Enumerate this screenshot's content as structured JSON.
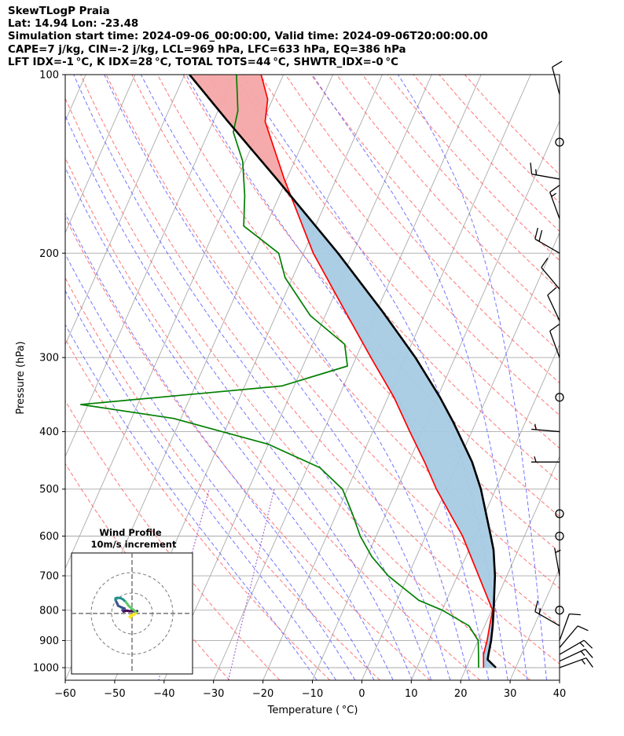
{
  "header": {
    "line1": "SkewTLogP Praia",
    "line2": "Lat: 14.94   Lon: -23.48",
    "line3": "Simulation start time: 2024-09-06_00:00:00, Valid time: 2024-09-06T20:00:00.00",
    "line4": "CAPE=7 j/kg, CIN=-2 j/kg, LCL=969 hPa, LFC=633 hPa, EQ=386 hPa",
    "line5": "LFT IDX=-1 °C, K IDX=28 °C, TOTAL TOTS=44 °C, SHWTR_IDX=-0 °C"
  },
  "colors": {
    "temperature": "#ff0000",
    "dewpoint": "#008000",
    "parcel": "#000000",
    "cape_fill": "#a6cbe3",
    "cin_fill": "#f4a6a6",
    "dry_adiabat": "#ff6666",
    "moist_adiabat": "#6666ff",
    "mixing_ratio": "#9a4fc7",
    "isotherm": "#aaaaaa"
  },
  "chart_data": {
    "type": "line",
    "subtype": "skew-T log-P",
    "xlabel": "Temperature ( °C)",
    "ylabel": "Pressure (hPa)",
    "xlim": [
      -60,
      40
    ],
    "ylim": [
      1050,
      100
    ],
    "y_scale": "log",
    "grid": true,
    "x_ticks": [
      -60,
      -50,
      -40,
      -30,
      -20,
      -10,
      0,
      10,
      20,
      30,
      40
    ],
    "x_tick_labels": [
      "−60",
      "−50",
      "−40",
      "−30",
      "−20",
      "−10",
      "0",
      "10",
      "20",
      "30",
      "40"
    ],
    "y_ticks": [
      100,
      200,
      300,
      400,
      500,
      600,
      700,
      800,
      900,
      1000
    ],
    "y_tick_labels": [
      "100",
      "200",
      "300",
      "400",
      "500",
      "600",
      "700",
      "800",
      "900",
      "1000"
    ],
    "series": [
      {
        "key": "temperature",
        "points": [
          [
            1000,
            23.5
          ],
          [
            950,
            22.3
          ],
          [
            900,
            21.8
          ],
          [
            850,
            21.0
          ],
          [
            800,
            20.2
          ],
          [
            770,
            18.5
          ],
          [
            700,
            14.3
          ],
          [
            600,
            7.5
          ],
          [
            500,
            -2.0
          ],
          [
            450,
            -6.8
          ],
          [
            400,
            -12.5
          ],
          [
            350,
            -18.8
          ],
          [
            300,
            -27.0
          ],
          [
            250,
            -36.5
          ],
          [
            200,
            -48.0
          ],
          [
            150,
            -60.5
          ],
          [
            120,
            -69.5
          ],
          [
            110,
            -71.0
          ],
          [
            100,
            -74.5
          ]
        ]
      },
      {
        "key": "dewpoint",
        "points": [
          [
            1000,
            22.5
          ],
          [
            950,
            21.3
          ],
          [
            900,
            20.0
          ],
          [
            850,
            16.8
          ],
          [
            800,
            10.0
          ],
          [
            770,
            4.4
          ],
          [
            700,
            -4.0
          ],
          [
            650,
            -9.0
          ],
          [
            600,
            -13.2
          ],
          [
            550,
            -16.8
          ],
          [
            500,
            -21.0
          ],
          [
            460,
            -27.5
          ],
          [
            420,
            -40.0
          ],
          [
            380,
            -61.5
          ],
          [
            360,
            -81.5
          ],
          [
            335,
            -42.5
          ],
          [
            310,
            -31.0
          ],
          [
            285,
            -33.5
          ],
          [
            255,
            -43.0
          ],
          [
            220,
            -51.5
          ],
          [
            200,
            -55.0
          ],
          [
            180,
            -64.5
          ],
          [
            160,
            -67.0
          ],
          [
            140,
            -70.5
          ],
          [
            125,
            -75.0
          ],
          [
            115,
            -76.0
          ],
          [
            100,
            -79.5
          ]
        ]
      },
      {
        "key": "parcel",
        "points": [
          [
            1000,
            26.0
          ],
          [
            969,
            23.6
          ],
          [
            950,
            23.3
          ],
          [
            900,
            22.6
          ],
          [
            850,
            21.6
          ],
          [
            800,
            20.4
          ],
          [
            700,
            17.6
          ],
          [
            633,
            15.0
          ],
          [
            600,
            13.2
          ],
          [
            500,
            7.0
          ],
          [
            450,
            2.8
          ],
          [
            386,
            -4.5
          ],
          [
            350,
            -9.5
          ],
          [
            300,
            -18.0
          ],
          [
            250,
            -29.0
          ],
          [
            200,
            -43.0
          ],
          [
            150,
            -62.0
          ],
          [
            120,
            -77.0
          ],
          [
            100,
            -89.0
          ]
        ]
      }
    ],
    "wind_barbs": [
      {
        "pressure": 1000,
        "speed_kt": 15,
        "direction_deg": 70
      },
      {
        "pressure": 975,
        "speed_kt": 15,
        "direction_deg": 65
      },
      {
        "pressure": 950,
        "speed_kt": 15,
        "direction_deg": 60
      },
      {
        "pressure": 925,
        "speed_kt": 12,
        "direction_deg": 40
      },
      {
        "pressure": 900,
        "speed_kt": 10,
        "direction_deg": 20
      },
      {
        "pressure": 850,
        "speed_kt": 15,
        "direction_deg": 300
      },
      {
        "pressure": 800,
        "speed_kt": 0,
        "direction_deg": 0
      },
      {
        "pressure": 700,
        "speed_kt": 5,
        "direction_deg": 350
      },
      {
        "pressure": 600,
        "speed_kt": 0,
        "direction_deg": 0
      },
      {
        "pressure": 550,
        "speed_kt": 0,
        "direction_deg": 0
      },
      {
        "pressure": 450,
        "speed_kt": 5,
        "direction_deg": 270
      },
      {
        "pressure": 400,
        "speed_kt": 5,
        "direction_deg": 275
      },
      {
        "pressure": 350,
        "speed_kt": 0,
        "direction_deg": 0
      },
      {
        "pressure": 300,
        "speed_kt": 10,
        "direction_deg": 340
      },
      {
        "pressure": 260,
        "speed_kt": 10,
        "direction_deg": 335
      },
      {
        "pressure": 230,
        "speed_kt": 10,
        "direction_deg": 320
      },
      {
        "pressure": 200,
        "speed_kt": 20,
        "direction_deg": 300
      },
      {
        "pressure": 175,
        "speed_kt": 15,
        "direction_deg": 340
      },
      {
        "pressure": 150,
        "speed_kt": 15,
        "direction_deg": 280
      },
      {
        "pressure": 130,
        "speed_kt": 0,
        "direction_deg": 0
      },
      {
        "pressure": 108,
        "speed_kt": 10,
        "direction_deg": 345
      }
    ],
    "inset": {
      "title_line1": "Wind Profile",
      "title_line2": "10m/s increment",
      "hodograph_ms": [
        [
          2.5,
          1.2
        ],
        [
          1.6,
          0.8
        ],
        [
          0.3,
          1.3
        ],
        [
          -1.2,
          1.1
        ],
        [
          -2.6,
          1.4
        ],
        [
          -4.1,
          1.0
        ],
        [
          -4.7,
          1.6
        ],
        [
          -3.6,
          2.4
        ],
        [
          -5.2,
          3.0
        ],
        [
          -6.8,
          3.8
        ],
        [
          -7.4,
          5.2
        ],
        [
          -8.1,
          6.5
        ],
        [
          -8.1,
          7.4
        ],
        [
          -7.2,
          7.7
        ],
        [
          -5.6,
          7.5
        ],
        [
          -4.4,
          6.9
        ],
        [
          -3.0,
          5.6
        ],
        [
          -1.6,
          3.7
        ],
        [
          -0.2,
          2.4
        ],
        [
          1.2,
          1.4
        ],
        [
          2.0,
          0.6
        ],
        [
          1.0,
          -0.6
        ],
        [
          -0.6,
          -0.9
        ],
        [
          -1.2,
          -1.6
        ],
        [
          -0.8,
          -2.0
        ],
        [
          0.4,
          -0.6
        ],
        [
          1.8,
          0.0
        ]
      ],
      "rings_ms": [
        10,
        20
      ]
    }
  }
}
